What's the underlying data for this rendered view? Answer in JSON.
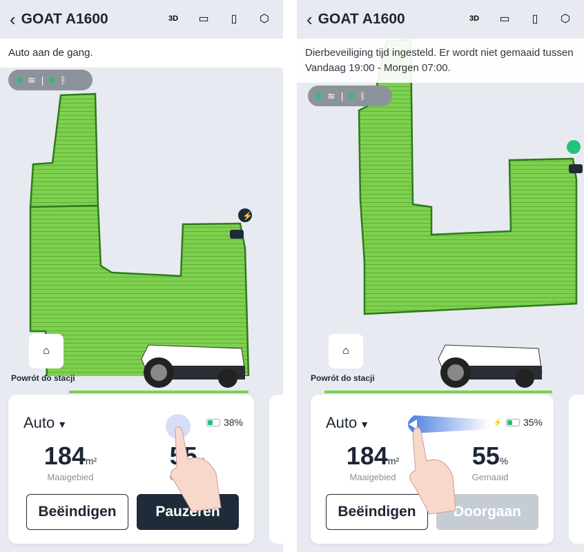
{
  "screens": [
    {
      "header": {
        "title": "GOAT A1600"
      },
      "notice": "Auto aan de gang.",
      "home_label": "Powrót do stacji",
      "mode": "Auto",
      "battery": "38%",
      "stats": [
        {
          "value": "184",
          "unit": "m²",
          "label": "Maaigebied"
        },
        {
          "value": "55",
          "unit": "%",
          "label": "Gemaaid"
        }
      ],
      "buttons": {
        "end": "Beëindigen",
        "primary": "Pauzeren"
      }
    },
    {
      "header": {
        "title": "GOAT A1600"
      },
      "notice": "Dierbeveiliging tijd ingesteld. Er wordt niet gemaaid tussen Vandaag 19:00 - Morgen 07:00.",
      "home_label": "Powrót do stacji",
      "mode": "Auto",
      "battery": "35%",
      "stats": [
        {
          "value": "184",
          "unit": "m²",
          "label": "Maaigebied"
        },
        {
          "value": "55",
          "unit": "%",
          "label": "Gemaaid"
        }
      ],
      "buttons": {
        "end": "Beëindigen",
        "primary": "Doorgaan"
      }
    }
  ],
  "header_icons": [
    "3d-view-icon",
    "camera-icon",
    "map-icon",
    "settings-icon"
  ],
  "colors": {
    "lawn": "#7ed04f",
    "dark": "#1f2b38",
    "accent": "#25c07a"
  }
}
